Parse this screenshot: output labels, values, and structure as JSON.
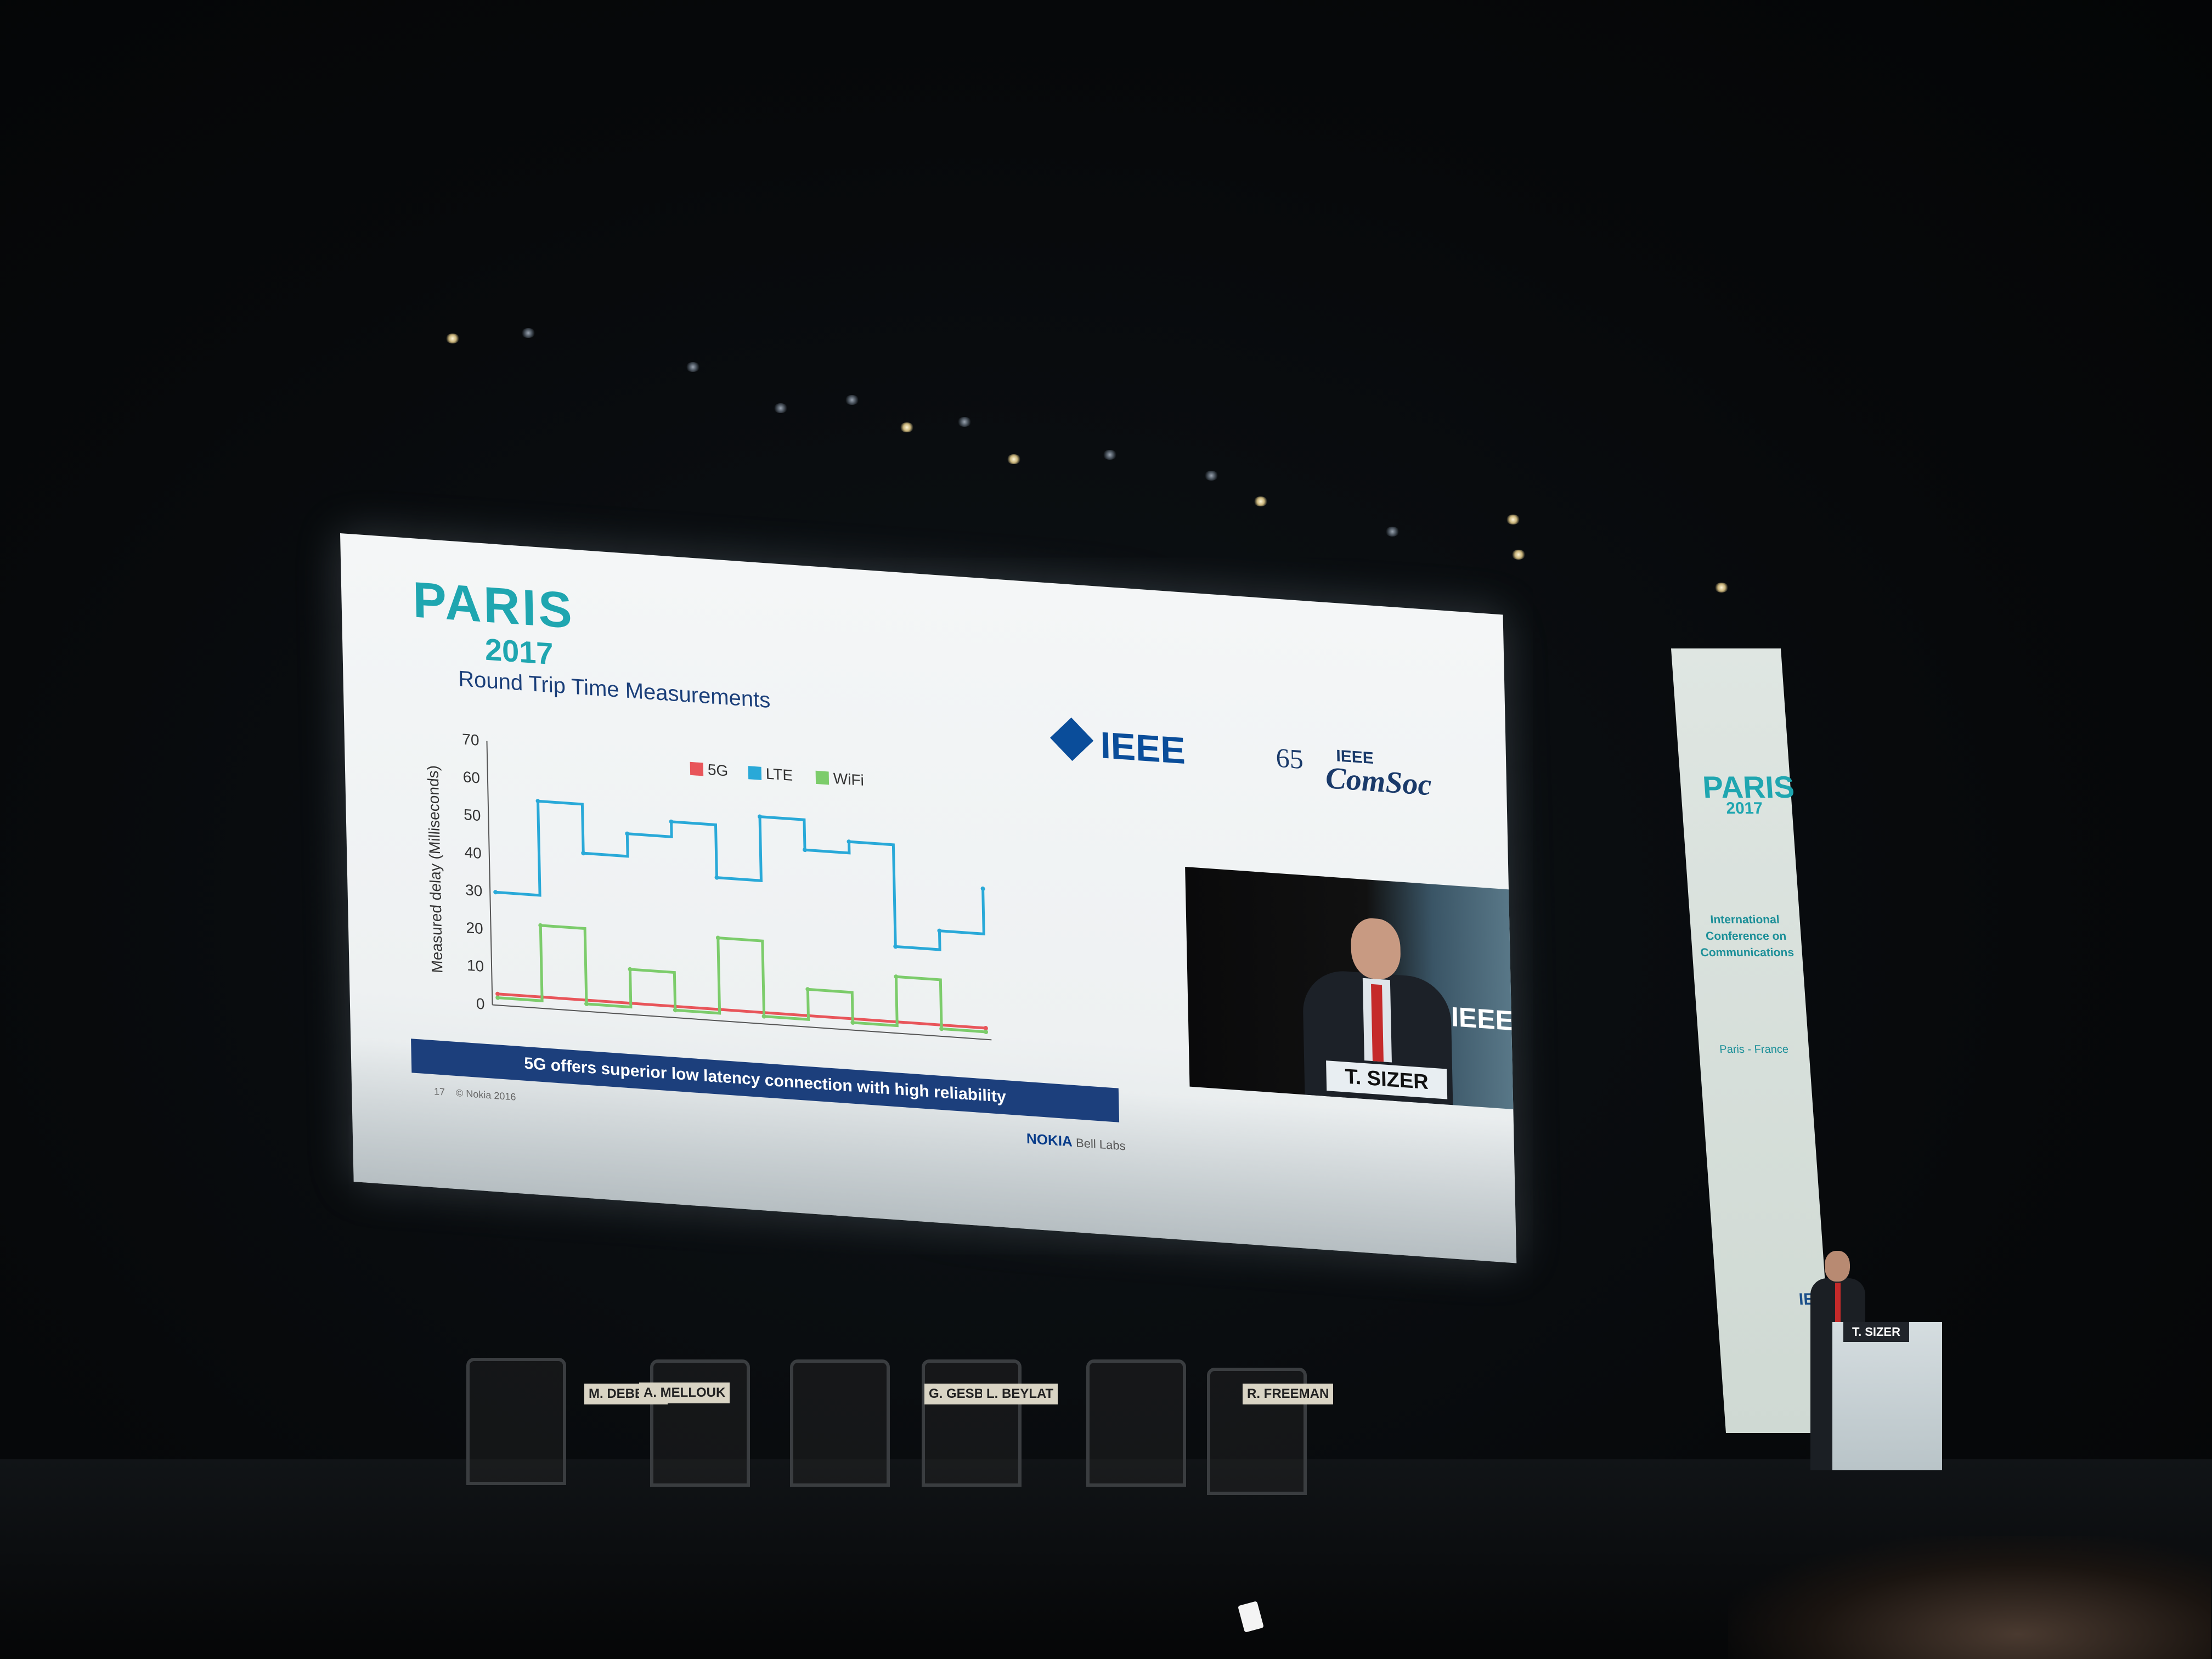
{
  "slide": {
    "logo_paris": "PARIS",
    "logo_year": "2017",
    "title": "Round Trip Time Measurements",
    "ieee_logo": "IEEE",
    "comsoc_years": "65",
    "comsoc_ieee": "IEEE",
    "comsoc_name": "ComSoc",
    "banner": "5G offers superior low latency connection with high reliability",
    "page_number": "17",
    "copyright": "© Nokia 2016",
    "nokia": "NOKIA",
    "bell_labs": "Bell Labs"
  },
  "chart_data": {
    "type": "line",
    "ylabel": "Measured delay (Milliseconds)",
    "ylim": [
      0,
      70
    ],
    "yticks": [
      0,
      10,
      20,
      30,
      40,
      50,
      60,
      70
    ],
    "legend_position": "top",
    "series": [
      {
        "name": "5G",
        "color": "#e8555a",
        "values": [
          3,
          3,
          3,
          3,
          3,
          3,
          3,
          3,
          3,
          3,
          3,
          3
        ]
      },
      {
        "name": "LTE",
        "color": "#29a9d8",
        "values": [
          30,
          55,
          42,
          48,
          52,
          38,
          55,
          47,
          50,
          23,
          28,
          40
        ]
      },
      {
        "name": "WiFi",
        "color": "#7ccc6b",
        "values": [
          2,
          22,
          2,
          12,
          2,
          22,
          2,
          10,
          2,
          15,
          2,
          2
        ]
      }
    ]
  },
  "video": {
    "podium_sign": "T. SIZER",
    "ieee": "IEEE"
  },
  "vertical_banner": {
    "paris": "PARIS",
    "year": "2017",
    "conference": "International Conference on Communications",
    "place": "Paris - France",
    "ieee": "IEEE"
  },
  "stage": {
    "nameplates": [
      "M. DEBBAH",
      "A. MELLOUK",
      "G. GESBERT",
      "L. BEYLAT",
      "R. FREEMAN"
    ],
    "podium_sign": "T. SIZER"
  }
}
